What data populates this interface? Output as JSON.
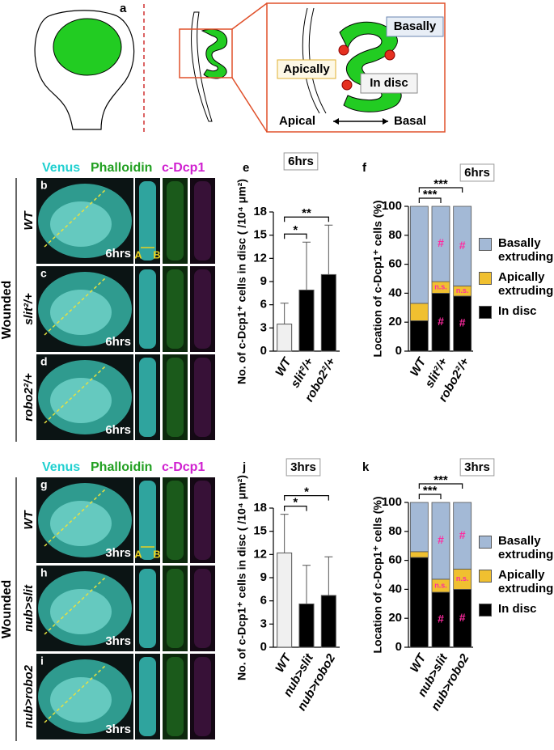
{
  "panel_a": {
    "letter": "a",
    "basally": "Basally",
    "apically": "Apically",
    "in_disc": "In disc",
    "apical": "Apical",
    "basal": "Basal"
  },
  "image_panels": [
    {
      "channels": [
        "Venus",
        "Phalloidin",
        "c-Dcp1"
      ],
      "group": "Wounded",
      "rows": [
        {
          "letter": "b",
          "genotype": "WT",
          "time": "6hrs",
          "markers": [
            "A",
            "B"
          ]
        },
        {
          "letter": "c",
          "genotype": "slit²/+",
          "time": "6hrs"
        },
        {
          "letter": "d",
          "genotype": "robo2²/+",
          "time": "6hrs"
        }
      ]
    },
    {
      "channels": [
        "Venus",
        "Phalloidin",
        "c-Dcp1"
      ],
      "group": "Wounded",
      "rows": [
        {
          "letter": "g",
          "genotype": "WT",
          "time": "3hrs",
          "markers": [
            "A",
            "B"
          ]
        },
        {
          "letter": "h",
          "genotype": "nub>slit",
          "time": "3hrs"
        },
        {
          "letter": "i",
          "genotype": "nub>robo2",
          "time": "3hrs"
        }
      ]
    }
  ],
  "chart_data": [
    {
      "type": "bar",
      "label": "e",
      "title": "6hrs",
      "y_label": "No. of c-Dcp1⁺ cells in disc ( /10⁴ μm²)",
      "categories": [
        "WT",
        "slit²/+",
        "robo2²/+"
      ],
      "values": [
        3.5,
        7.9,
        9.9
      ],
      "errors": [
        2.7,
        6.2,
        6.4
      ],
      "colors": [
        "#f0f0f0",
        "#000000",
        "#000000"
      ],
      "ylim": [
        0,
        18
      ],
      "yticks": [
        0,
        3,
        6,
        9,
        12,
        15,
        18
      ],
      "annotations": [
        {
          "text": "*",
          "pair": [
            0,
            1
          ]
        },
        {
          "text": "**",
          "pair": [
            0,
            2
          ]
        }
      ]
    },
    {
      "type": "stacked_bar",
      "label": "f",
      "title": "6hrs",
      "y_label": "Location of c-Dcp1⁺ cells (%)",
      "categories": [
        "WT",
        "slit²/+",
        "robo2²/+"
      ],
      "series": [
        {
          "name": "In disc",
          "color": "#000000",
          "values": [
            21,
            40,
            38
          ]
        },
        {
          "name": "Apically extruding",
          "color": "#f0c030",
          "values": [
            12,
            8,
            7
          ]
        },
        {
          "name": "Basally extruding",
          "color": "#a3b9d6",
          "values": [
            67,
            52,
            55
          ]
        }
      ],
      "ylim": [
        0,
        100
      ],
      "yticks": [
        0,
        20,
        40,
        60,
        80,
        100
      ],
      "annotations": [
        {
          "text": "***",
          "pair": [
            0,
            1
          ]
        },
        {
          "text": "***",
          "pair": [
            0,
            2
          ]
        }
      ],
      "segment_labels": [
        {
          "text": "#",
          "series": 2,
          "category": 1
        },
        {
          "text": "#",
          "series": 2,
          "category": 2
        },
        {
          "text": "n.s.",
          "series": 1,
          "category": 1
        },
        {
          "text": "n.s.",
          "series": 1,
          "category": 2
        },
        {
          "text": "#",
          "series": 0,
          "category": 1
        },
        {
          "text": "#",
          "series": 0,
          "category": 2
        }
      ]
    },
    {
      "type": "bar",
      "label": "j",
      "title": "3hrs",
      "y_label": "No. of c-Dcp1⁺ cells in disc ( /10⁴ μm²)",
      "categories": [
        "WT",
        "nub>slit",
        "nub>robo2"
      ],
      "values": [
        12.2,
        5.6,
        6.7
      ],
      "errors": [
        5.0,
        5.0,
        5.0
      ],
      "colors": [
        "#f0f0f0",
        "#000000",
        "#000000"
      ],
      "ylim": [
        0,
        18
      ],
      "yticks": [
        0,
        3,
        6,
        9,
        12,
        15,
        18
      ],
      "annotations": [
        {
          "text": "*",
          "pair": [
            0,
            1
          ]
        },
        {
          "text": "*",
          "pair": [
            0,
            2
          ]
        }
      ]
    },
    {
      "type": "stacked_bar",
      "label": "k",
      "title": "3hrs",
      "y_label": "Location of c-Dcp1⁺ cells (%)",
      "categories": [
        "WT",
        "nub>slit",
        "nub>robo2"
      ],
      "series": [
        {
          "name": "In disc",
          "color": "#000000",
          "values": [
            62,
            38,
            40
          ]
        },
        {
          "name": "Apically extruding",
          "color": "#f0c030",
          "values": [
            4,
            9,
            14
          ]
        },
        {
          "name": "Basally extruding",
          "color": "#a3b9d6",
          "values": [
            34,
            53,
            46
          ]
        }
      ],
      "ylim": [
        0,
        100
      ],
      "yticks": [
        0,
        20,
        40,
        60,
        80,
        100
      ],
      "annotations": [
        {
          "text": "***",
          "pair": [
            0,
            1
          ]
        },
        {
          "text": "***",
          "pair": [
            0,
            2
          ]
        }
      ],
      "segment_labels": [
        {
          "text": "#",
          "series": 2,
          "category": 1
        },
        {
          "text": "#",
          "series": 2,
          "category": 2
        },
        {
          "text": "n.s.",
          "series": 1,
          "category": 1
        },
        {
          "text": "n.s.",
          "series": 1,
          "category": 2
        },
        {
          "text": "#",
          "series": 0,
          "category": 1
        },
        {
          "text": "#",
          "series": 0,
          "category": 2
        }
      ]
    }
  ]
}
